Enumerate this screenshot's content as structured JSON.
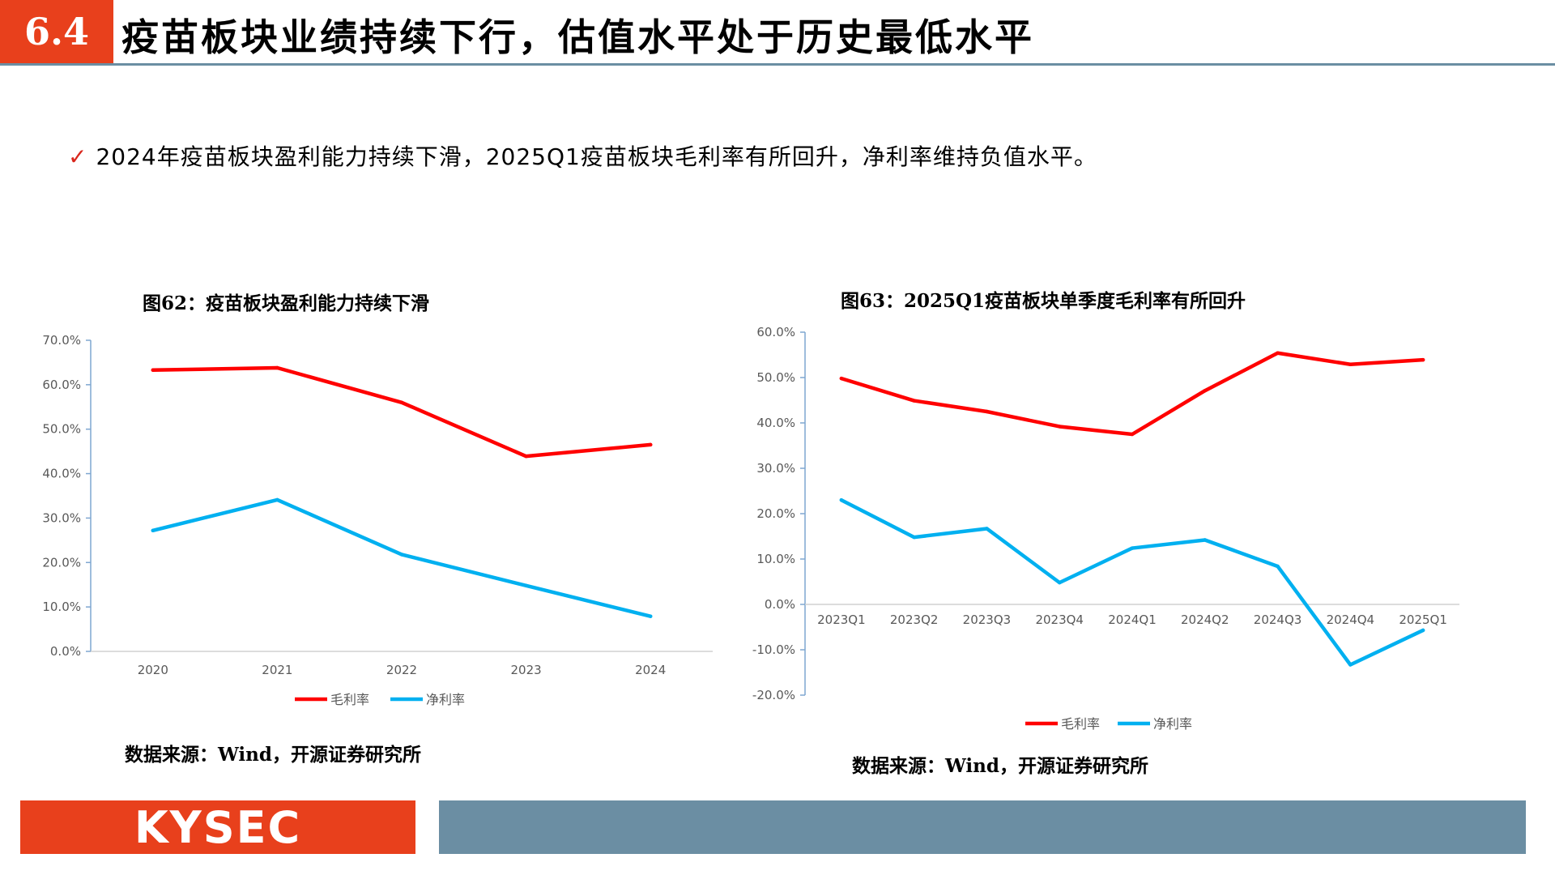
{
  "header": {
    "section": "6.4",
    "title": "疫苗板块业绩持续下行，估值水平处于历史最低水平"
  },
  "bullet": {
    "mark": "✓",
    "text": "2024年疫苗板块盈利能力持续下滑，2025Q1疫苗板块毛利率有所回升，净利率维持负值水平。"
  },
  "colors": {
    "accent": "#e8401c",
    "bar": "#6b8ea3",
    "gross": "#ff0000",
    "net": "#00b0f0"
  },
  "charts": [
    {
      "caption": "图62：疫苗板块盈利能力持续下滑",
      "source": "数据来源：Wind，开源证券研究所"
    },
    {
      "caption": "图63：2025Q1疫苗板块单季度毛利率有所回升",
      "source": "数据来源：Wind，开源证券研究所"
    }
  ],
  "chart_data": [
    {
      "type": "line",
      "title": "图62：疫苗板块盈利能力持续下滑",
      "x": [
        "2020",
        "2021",
        "2022",
        "2023",
        "2024"
      ],
      "series": [
        {
          "name": "毛利率",
          "values": [
            63.3,
            63.8,
            56.0,
            43.9,
            46.5
          ]
        },
        {
          "name": "净利率",
          "values": [
            27.2,
            34.1,
            21.8,
            14.8,
            7.9
          ]
        }
      ],
      "ylim": [
        0,
        70
      ],
      "yticks": [
        "0.0%",
        "10.0%",
        "20.0%",
        "30.0%",
        "40.0%",
        "50.0%",
        "60.0%",
        "70.0%"
      ],
      "legend": "bottom",
      "grid": false
    },
    {
      "type": "line",
      "title": "图63：2025Q1疫苗板块单季度毛利率有所回升",
      "x": [
        "2023Q1",
        "2023Q2",
        "2023Q3",
        "2023Q4",
        "2024Q1",
        "2024Q2",
        "2024Q3",
        "2024Q4",
        "2025Q1"
      ],
      "series": [
        {
          "name": "毛利率",
          "values": [
            49.8,
            44.9,
            42.5,
            39.2,
            37.5,
            47.1,
            55.4,
            52.9,
            53.9
          ]
        },
        {
          "name": "净利率",
          "values": [
            23.0,
            14.8,
            16.7,
            4.8,
            12.4,
            14.2,
            8.4,
            -13.3,
            -5.7
          ]
        }
      ],
      "ylim": [
        -20,
        60
      ],
      "yticks": [
        "-20.0%",
        "-10.0%",
        "0.0%",
        "10.0%",
        "20.0%",
        "30.0%",
        "40.0%",
        "50.0%",
        "60.0%"
      ],
      "legend": "bottom",
      "grid": false
    }
  ],
  "footer": {
    "logo": "KYSEC"
  }
}
